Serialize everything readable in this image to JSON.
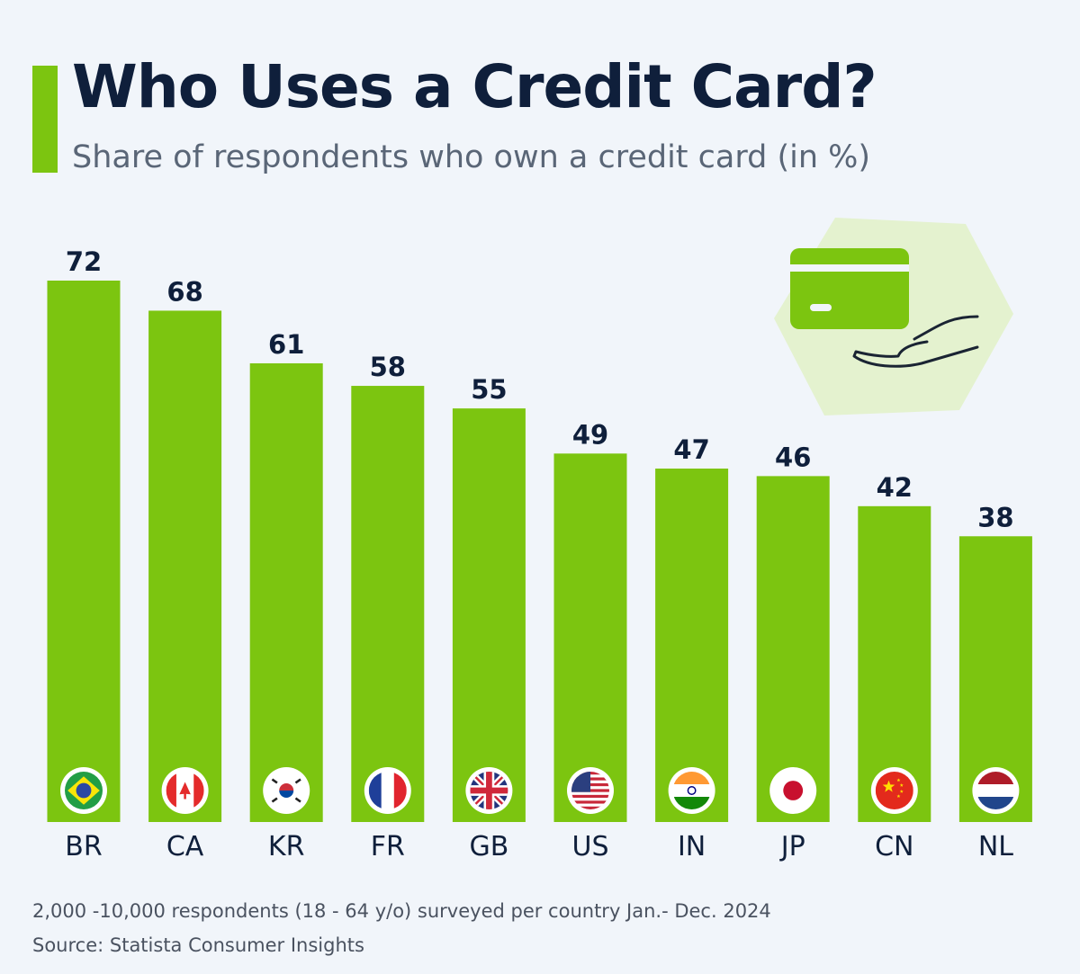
{
  "header": {
    "title": "Who Uses a Credit Card?",
    "subtitle": "Share of respondents who own a credit card (in %)"
  },
  "colors": {
    "accent": "#7cc510",
    "bar": "#7cc510",
    "title": "#0f1f3b",
    "background": "#f1f5fa"
  },
  "chart_data": {
    "type": "bar",
    "title": "Who Uses a Credit Card?",
    "subtitle": "Share of respondents who own a credit card (in %)",
    "categories": [
      "BR",
      "CA",
      "KR",
      "FR",
      "GB",
      "US",
      "IN",
      "JP",
      "CN",
      "NL"
    ],
    "values": [
      72,
      68,
      61,
      58,
      55,
      49,
      47,
      46,
      42,
      38
    ],
    "flags": [
      "brazil-flag-icon",
      "canada-flag-icon",
      "south-korea-flag-icon",
      "france-flag-icon",
      "uk-flag-icon",
      "usa-flag-icon",
      "india-flag-icon",
      "japan-flag-icon",
      "china-flag-icon",
      "netherlands-flag-icon"
    ],
    "ylim": [
      0,
      72
    ],
    "grid": false,
    "legend": "none"
  },
  "illustration": {
    "icon": "credit-card-in-hand-icon"
  },
  "footer": {
    "note": "2,000 -10,000 respondents (18 - 64 y/o) surveyed per country Jan.- Dec. 2024",
    "source": "Source: Statista Consumer Insights"
  }
}
